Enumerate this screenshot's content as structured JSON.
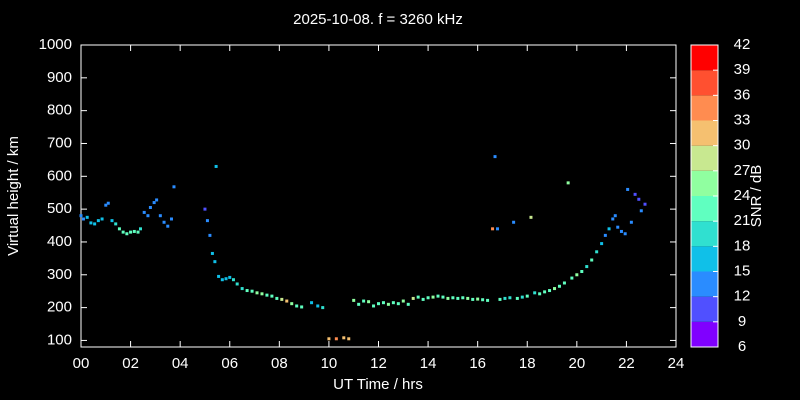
{
  "chart_data": {
    "type": "scatter",
    "title": "2025-10-08. f = 3260 kHz",
    "x_label": "UT Time / hrs",
    "y_label": "Virtual height / km",
    "xlim": [
      0,
      24
    ],
    "xticks": [
      {
        "value": 0,
        "label": "00"
      },
      {
        "value": 2,
        "label": "02"
      },
      {
        "value": 4,
        "label": "04"
      },
      {
        "value": 6,
        "label": "06"
      },
      {
        "value": 8,
        "label": "08"
      },
      10,
      12,
      14,
      16,
      18,
      20,
      22,
      24
    ],
    "ylim": [
      80,
      1000
    ],
    "yticks": [
      100,
      200,
      300,
      400,
      500,
      600,
      700,
      800,
      900,
      1000
    ],
    "colorbar": {
      "label": "SNR / dB",
      "lim": [
        6,
        42
      ],
      "ticks": [
        6,
        9,
        12,
        15,
        18,
        21,
        24,
        27,
        30,
        33,
        36,
        39,
        42
      ],
      "colors": [
        "#8000ff",
        "#5050ff",
        "#2a8cff",
        "#10c0e8",
        "#30e0d0",
        "#60ffc0",
        "#90ffa0",
        "#c8e890",
        "#f5c070",
        "#ff8c50",
        "#ff5030",
        "#ff0000"
      ]
    },
    "x": [
      0.0,
      0.1,
      0.25,
      0.4,
      0.55,
      0.7,
      0.85,
      1.0,
      1.1,
      1.25,
      1.4,
      1.55,
      1.7,
      1.85,
      2.0,
      2.15,
      2.3,
      2.4,
      2.55,
      2.7,
      2.8,
      2.95,
      3.05,
      3.2,
      3.35,
      3.5,
      3.65,
      3.75,
      5.0,
      5.1,
      5.2,
      5.3,
      5.4,
      5.45,
      5.55,
      5.7,
      5.85,
      6.0,
      6.15,
      6.3,
      6.5,
      6.7,
      6.9,
      7.1,
      7.3,
      7.5,
      7.7,
      7.9,
      8.1,
      8.3,
      8.5,
      8.7,
      8.9,
      9.3,
      9.55,
      9.75,
      10.0,
      10.3,
      10.6,
      10.8,
      11.0,
      11.2,
      11.4,
      11.6,
      11.8,
      12.0,
      12.2,
      12.4,
      12.6,
      12.8,
      13.0,
      13.2,
      13.4,
      13.6,
      13.8,
      14.0,
      14.2,
      14.4,
      14.6,
      14.8,
      15.0,
      15.2,
      15.4,
      15.6,
      15.8,
      16.0,
      16.2,
      16.4,
      16.6,
      16.7,
      16.8,
      16.9,
      17.1,
      17.3,
      17.45,
      17.6,
      17.8,
      18.0,
      18.15,
      18.3,
      18.5,
      18.7,
      18.9,
      19.1,
      19.3,
      19.5,
      19.65,
      19.8,
      20.0,
      20.2,
      20.4,
      20.6,
      20.8,
      21.0,
      21.15,
      21.3,
      21.45,
      21.55,
      21.65,
      21.8,
      21.95,
      22.05,
      22.2,
      22.35,
      22.5,
      22.6,
      22.75
    ],
    "y": [
      480,
      470,
      475,
      458,
      455,
      465,
      470,
      512,
      518,
      465,
      455,
      440,
      430,
      425,
      430,
      432,
      430,
      440,
      490,
      480,
      505,
      520,
      528,
      480,
      460,
      448,
      470,
      568,
      500,
      465,
      420,
      365,
      340,
      630,
      295,
      285,
      288,
      292,
      285,
      272,
      258,
      252,
      250,
      245,
      242,
      238,
      235,
      228,
      225,
      220,
      212,
      205,
      202,
      215,
      205,
      200,
      105,
      105,
      108,
      105,
      222,
      210,
      220,
      218,
      205,
      212,
      215,
      210,
      215,
      212,
      220,
      210,
      228,
      232,
      225,
      230,
      232,
      235,
      232,
      228,
      230,
      228,
      230,
      228,
      225,
      226,
      224,
      222,
      440,
      660,
      440,
      225,
      228,
      230,
      460,
      228,
      232,
      235,
      475,
      245,
      242,
      248,
      252,
      258,
      265,
      275,
      580,
      290,
      300,
      310,
      325,
      345,
      370,
      395,
      420,
      440,
      470,
      480,
      445,
      432,
      425,
      560,
      460,
      545,
      530,
      495,
      515
    ],
    "snr": [
      12,
      12,
      15,
      15,
      15,
      15,
      15,
      12,
      12,
      15,
      18,
      21,
      21,
      21,
      21,
      21,
      21,
      18,
      12,
      12,
      12,
      12,
      12,
      12,
      12,
      12,
      12,
      12,
      9,
      12,
      12,
      15,
      15,
      15,
      15,
      15,
      15,
      15,
      18,
      18,
      18,
      21,
      21,
      24,
      24,
      21,
      21,
      21,
      27,
      30,
      24,
      21,
      21,
      15,
      15,
      18,
      30,
      33,
      30,
      30,
      24,
      21,
      21,
      24,
      21,
      21,
      21,
      24,
      21,
      21,
      24,
      21,
      27,
      21,
      21,
      21,
      24,
      21,
      21,
      24,
      21,
      21,
      21,
      24,
      21,
      24,
      21,
      21,
      33,
      12,
      12,
      21,
      18,
      18,
      12,
      21,
      18,
      21,
      27,
      18,
      21,
      21,
      21,
      24,
      21,
      21,
      24,
      21,
      24,
      21,
      18,
      21,
      18,
      15,
      12,
      15,
      12,
      12,
      12,
      12,
      12,
      12,
      12,
      9,
      9,
      12,
      9
    ]
  }
}
